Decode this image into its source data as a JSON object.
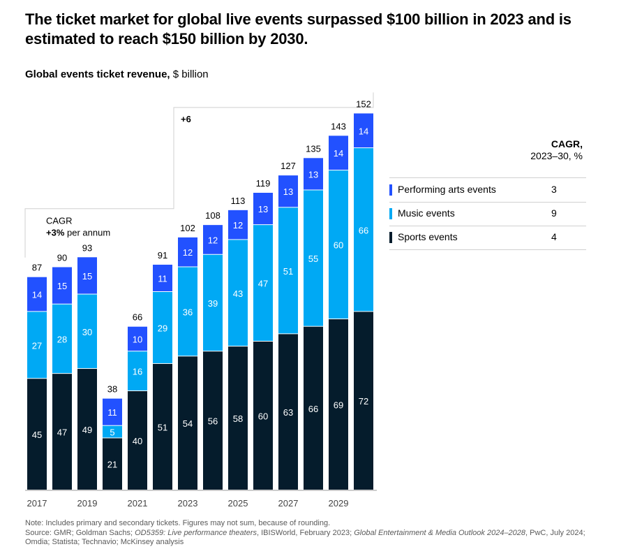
{
  "title": "The ticket market for global live events surpassed $100 billion in 2023 and is estimated to reach $150 billion by 2030.",
  "subtitle": {
    "bold": "Global events ticket revenue,",
    "rest": "$ billion"
  },
  "cagr_box": {
    "label": "CAGR",
    "value": "+3%",
    "suffix": "per annum"
  },
  "increment_label": "+6",
  "legend": {
    "header_bold": "CAGR,",
    "header_sub": "2023–30, %",
    "items": [
      {
        "label": "Performing arts events",
        "value": "3",
        "color": "#2251ff"
      },
      {
        "label": "Music events",
        "value": "9",
        "color": "#00a9f4"
      },
      {
        "label": "Sports events",
        "value": "4",
        "color": "#051c2c"
      }
    ]
  },
  "note": {
    "line1": "Note: Includes primary and secondary tickets. Figures may not sum, because of rounding.",
    "source_prefix": "Source: GMR; Goldman Sachs; ",
    "source_italic1": "OD5359: Live performance theaters",
    "source_mid": ", IBISWorld, February 2023; ",
    "source_italic2": "Global Entertainment & Media Outlook 2024–2028",
    "source_suffix": ", PwC, July 2024; Omdia; Statista; Technavio; McKinsey analysis"
  },
  "chart_data": {
    "type": "bar",
    "stacked": true,
    "categories": [
      "2017",
      "2018",
      "2019",
      "2020",
      "2021",
      "2022",
      "2023",
      "2024",
      "2025",
      "2026",
      "2027",
      "2028",
      "2029",
      "2030"
    ],
    "tick_labels": [
      "2017",
      "2019",
      "2021",
      "2023",
      "2025",
      "2027",
      "2029"
    ],
    "totals": [
      87,
      90,
      93,
      38,
      66,
      91,
      102,
      108,
      113,
      119,
      127,
      135,
      143,
      152
    ],
    "series": [
      {
        "name": "Sports events",
        "color": "#051c2c",
        "values": [
          45,
          47,
          49,
          21,
          40,
          51,
          54,
          56,
          58,
          60,
          63,
          66,
          69,
          72
        ]
      },
      {
        "name": "Music events",
        "color": "#00a9f4",
        "values": [
          27,
          28,
          30,
          5,
          16,
          29,
          36,
          39,
          43,
          47,
          51,
          55,
          60,
          66
        ]
      },
      {
        "name": "Performing arts events",
        "color": "#2251ff",
        "values": [
          14,
          15,
          15,
          11,
          10,
          11,
          12,
          12,
          12,
          13,
          13,
          13,
          14,
          14
        ]
      }
    ],
    "ylim": [
      0,
      152
    ]
  }
}
